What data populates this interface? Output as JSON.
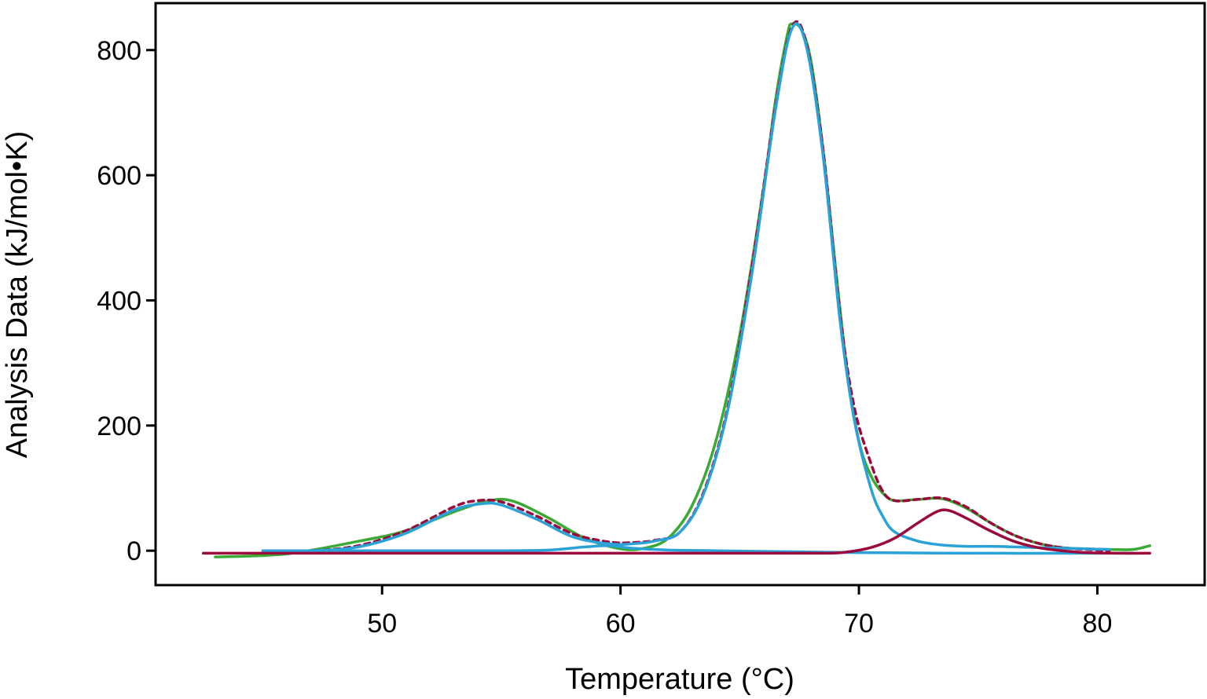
{
  "chart_data": {
    "type": "line",
    "title": "",
    "xlabel": "Temperature (°C)",
    "ylabel": "Analysis Data (kJ/mol•K)",
    "xlim": [
      40.5,
      84.5
    ],
    "ylim": [
      -55,
      875
    ],
    "xticks": [
      50,
      60,
      70,
      80
    ],
    "yticks": [
      0,
      200,
      400,
      600,
      800
    ],
    "xtick_labels": [
      "50",
      "60",
      "70",
      "80"
    ],
    "ytick_labels": [
      "0",
      "200",
      "400",
      "600",
      "800"
    ],
    "grid": false,
    "legend": "none",
    "series": [
      {
        "color": "#3aaa35",
        "style": "solid",
        "points": [
          [
            43.0,
            -10
          ],
          [
            46.0,
            -5
          ],
          [
            49.0,
            15
          ],
          [
            51.0,
            32
          ],
          [
            53.0,
            62
          ],
          [
            54.5,
            80
          ],
          [
            55.5,
            79
          ],
          [
            57.0,
            52
          ],
          [
            58.5,
            20
          ],
          [
            60.0,
            3
          ],
          [
            61.0,
            4
          ],
          [
            62.0,
            20
          ],
          [
            63.0,
            72
          ],
          [
            64.0,
            175
          ],
          [
            65.0,
            345
          ],
          [
            66.0,
            580
          ],
          [
            66.5,
            720
          ],
          [
            67.0,
            825
          ],
          [
            67.2,
            842
          ],
          [
            67.6,
            832
          ],
          [
            68.0,
            780
          ],
          [
            68.5,
            640
          ],
          [
            69.0,
            460
          ],
          [
            69.5,
            290
          ],
          [
            70.0,
            175
          ],
          [
            70.5,
            120
          ],
          [
            71.0,
            92
          ],
          [
            71.5,
            80
          ],
          [
            72.5,
            82
          ],
          [
            73.5,
            83
          ],
          [
            74.5,
            68
          ],
          [
            75.5,
            45
          ],
          [
            76.5,
            25
          ],
          [
            77.5,
            12
          ],
          [
            78.5,
            5
          ],
          [
            79.5,
            3
          ],
          [
            80.5,
            2
          ],
          [
            81.5,
            2
          ],
          [
            82.2,
            8
          ]
        ]
      },
      {
        "color": "#9b0a3c",
        "style": "dashed",
        "points": [
          [
            45.0,
            0
          ],
          [
            47.0,
            0
          ],
          [
            49.0,
            8
          ],
          [
            51.0,
            32
          ],
          [
            53.0,
            70
          ],
          [
            54.0,
            80
          ],
          [
            55.0,
            78
          ],
          [
            56.5,
            55
          ],
          [
            58.0,
            27
          ],
          [
            59.5,
            14
          ],
          [
            60.5,
            13
          ],
          [
            61.5,
            17
          ],
          [
            62.5,
            30
          ],
          [
            63.5,
            95
          ],
          [
            64.5,
            230
          ],
          [
            65.5,
            450
          ],
          [
            66.5,
            710
          ],
          [
            67.2,
            838
          ],
          [
            67.8,
            810
          ],
          [
            68.5,
            640
          ],
          [
            69.2,
            380
          ],
          [
            69.8,
            230
          ],
          [
            70.5,
            140
          ],
          [
            71.0,
            95
          ],
          [
            71.5,
            80
          ],
          [
            72.5,
            82
          ],
          [
            73.5,
            84
          ],
          [
            74.5,
            70
          ],
          [
            75.5,
            45
          ],
          [
            76.5,
            25
          ],
          [
            77.5,
            12
          ],
          [
            78.5,
            5
          ],
          [
            79.5,
            2
          ],
          [
            80.5,
            0
          ]
        ]
      },
      {
        "color": "#2aa2d8",
        "style": "solid",
        "points": [
          [
            45.0,
            0
          ],
          [
            47.0,
            0
          ],
          [
            49.0,
            6
          ],
          [
            51.0,
            28
          ],
          [
            53.0,
            65
          ],
          [
            54.2,
            75
          ],
          [
            55.0,
            73
          ],
          [
            56.5,
            50
          ],
          [
            58.0,
            22
          ],
          [
            59.5,
            11
          ],
          [
            60.5,
            11
          ],
          [
            61.5,
            16
          ],
          [
            62.5,
            30
          ],
          [
            63.5,
            92
          ],
          [
            64.5,
            225
          ],
          [
            65.5,
            440
          ],
          [
            66.5,
            705
          ],
          [
            67.2,
            835
          ],
          [
            67.8,
            805
          ],
          [
            68.5,
            630
          ],
          [
            69.2,
            370
          ],
          [
            69.8,
            210
          ],
          [
            70.5,
            100
          ],
          [
            71.0,
            55
          ],
          [
            71.5,
            30
          ],
          [
            72.5,
            15
          ],
          [
            73.5,
            9
          ],
          [
            74.5,
            7
          ],
          [
            75.5,
            7
          ],
          [
            76.5,
            6
          ],
          [
            77.5,
            5
          ],
          [
            78.5,
            4
          ],
          [
            79.5,
            3
          ],
          [
            80.5,
            2
          ]
        ]
      },
      {
        "color": "#2aa2d8",
        "style": "solid",
        "points": [
          [
            45.0,
            0
          ],
          [
            50.0,
            0
          ],
          [
            55.0,
            0
          ],
          [
            57.0,
            1
          ],
          [
            58.5,
            6
          ],
          [
            59.5,
            8
          ],
          [
            60.5,
            4
          ],
          [
            62.0,
            1
          ],
          [
            64.0,
            0
          ],
          [
            70.0,
            -3
          ],
          [
            75.0,
            -4
          ],
          [
            80.0,
            -4
          ],
          [
            81.5,
            -4
          ]
        ]
      },
      {
        "color": "#9b0a3c",
        "style": "solid",
        "points": [
          [
            42.5,
            -4
          ],
          [
            50.0,
            -4
          ],
          [
            60.0,
            -4
          ],
          [
            65.0,
            -4
          ],
          [
            68.5,
            -4
          ],
          [
            69.5,
            -2
          ],
          [
            70.5,
            5
          ],
          [
            71.5,
            20
          ],
          [
            72.5,
            45
          ],
          [
            73.3,
            63
          ],
          [
            73.8,
            64
          ],
          [
            74.5,
            52
          ],
          [
            75.5,
            32
          ],
          [
            76.5,
            15
          ],
          [
            77.5,
            5
          ],
          [
            78.5,
            0
          ],
          [
            79.5,
            -3
          ],
          [
            81.0,
            -4
          ],
          [
            82.2,
            -4
          ]
        ]
      }
    ]
  }
}
